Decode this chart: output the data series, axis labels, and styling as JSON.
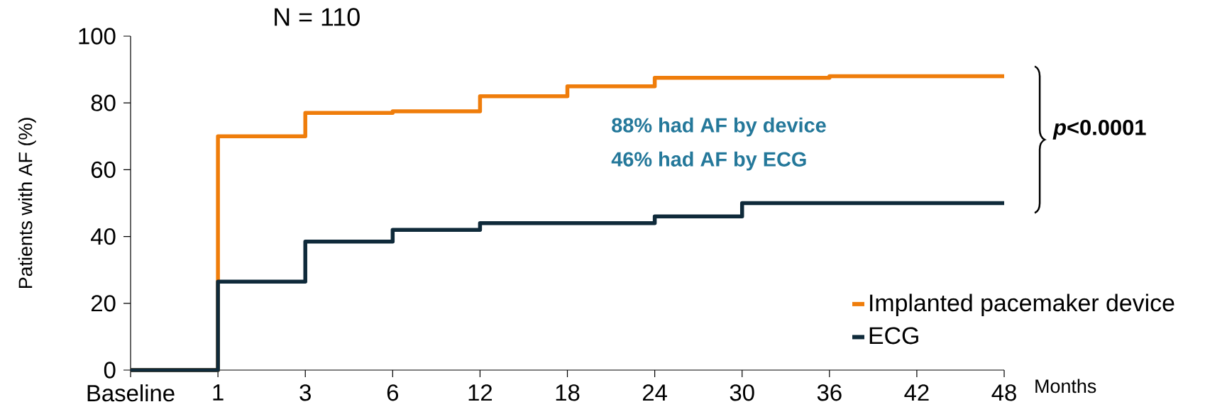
{
  "chart_data": {
    "type": "step",
    "ylabel": "Patients with AF (%)",
    "xlabel": "Months",
    "categories": [
      "Baseline",
      "1",
      "3",
      "6",
      "12",
      "18",
      "24",
      "30",
      "36",
      "42",
      "48"
    ],
    "series": [
      {
        "name": "Implanted pacemaker device",
        "color": "#ef7d0b",
        "values": [
          0,
          70,
          77,
          77.5,
          82,
          85,
          87.5,
          87.5,
          88,
          88,
          88
        ]
      },
      {
        "name": "ECG",
        "color": "#0f2a3a",
        "values": [
          0,
          26.5,
          38.5,
          42,
          44,
          44,
          46,
          50,
          50,
          50,
          50
        ]
      }
    ],
    "ylim": [
      0,
      100
    ],
    "yticks": [
      0,
      20,
      40,
      60,
      80,
      100
    ],
    "annotations": [
      "N = 110",
      "88% had AF by device",
      "46% had AF by ECG",
      "*p*<0.0001"
    ],
    "legend": "bottom right",
    "marker": "none",
    "line_style": "solid",
    "grid": false
  }
}
